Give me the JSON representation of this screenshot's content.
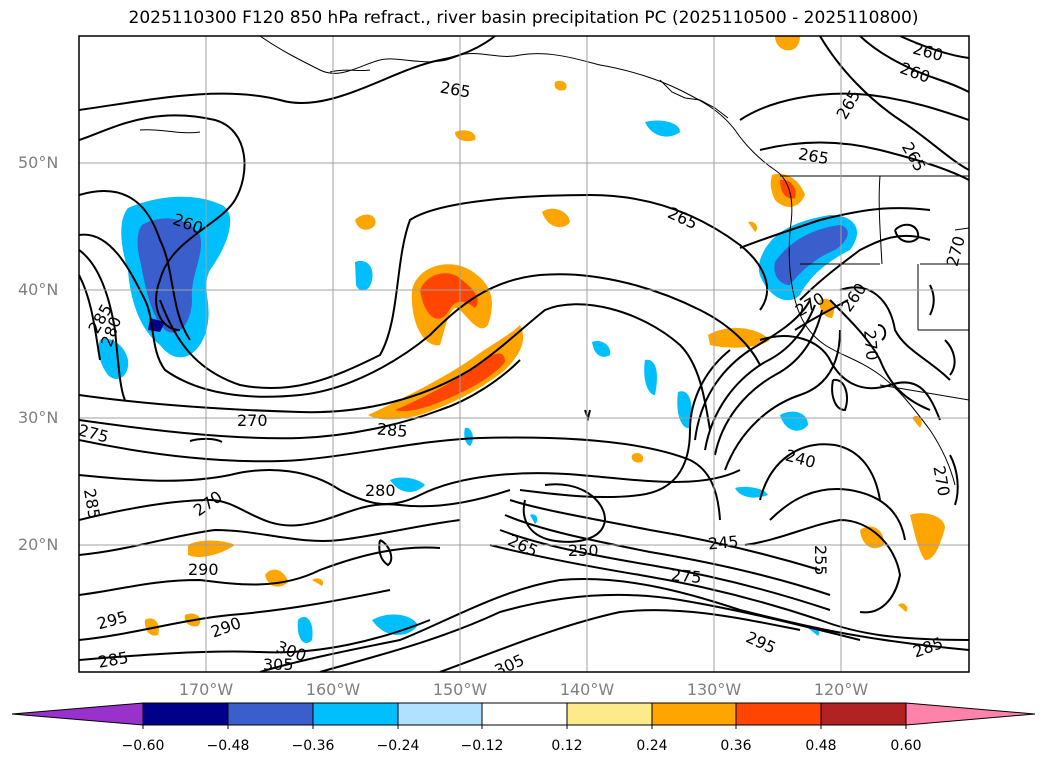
{
  "title": "2025110300 F120 850 hPa refract., river basin precipitation PC (2025110500 - 2025110800)",
  "lat_labels": [
    "50°N",
    "40°N",
    "30°N",
    "20°N"
  ],
  "lon_labels": [
    "170°W",
    "160°W",
    "150°W",
    "140°W",
    "130°W",
    "120°W"
  ],
  "contour_labels": [
    "265",
    "265",
    "260",
    "265",
    "265",
    "260",
    "260",
    "265",
    "270",
    "260",
    "280",
    "285",
    "275",
    "270",
    "285",
    "285",
    "270",
    "280",
    "290",
    "290",
    "295",
    "285",
    "300",
    "305",
    "305",
    "265",
    "250",
    "245",
    "275",
    "240",
    "255",
    "295",
    "285",
    "270",
    "270",
    "270"
  ],
  "colorbar": {
    "ticks": [
      "−0.60",
      "−0.48",
      "−0.36",
      "−0.24",
      "−0.12",
      "0.12",
      "0.24",
      "0.36",
      "0.48",
      "0.60"
    ],
    "colors": [
      "#9932cc",
      "#00008b",
      "#3a5fcd",
      "#00bfff",
      "#b0e2ff",
      "#ffffff",
      "#fdeb8b",
      "#ffa500",
      "#ff4500",
      "#b22222",
      "#ff82ab"
    ]
  }
}
